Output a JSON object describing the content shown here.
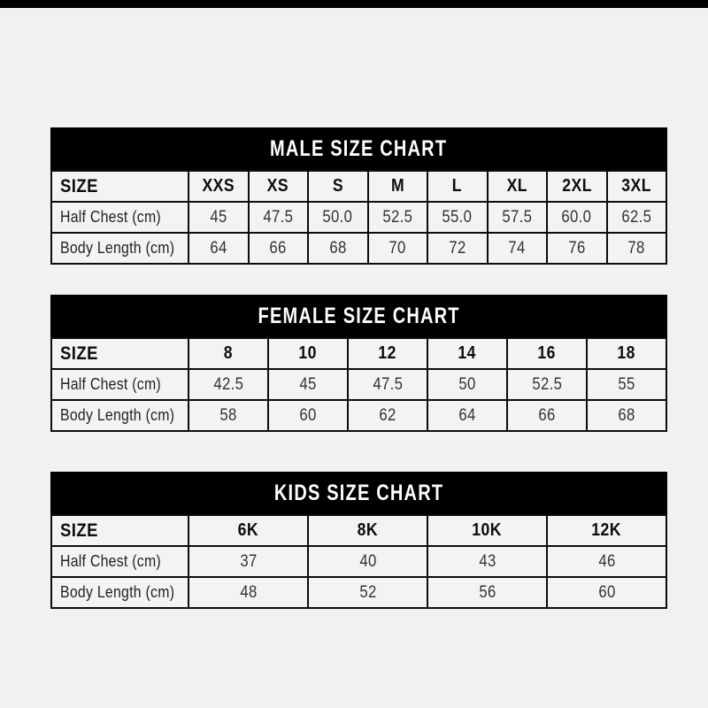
{
  "page": {
    "background_color": "#f1f1f1",
    "top_bar_color": "#000000",
    "table_border_color": "#0c0c0c",
    "title_bar_color": "#000000",
    "title_text_color": "#ffffff"
  },
  "chart_data": [
    {
      "type": "table",
      "title": "MALE SIZE CHART",
      "size_label": "SIZE",
      "sizes": [
        "XXS",
        "XS",
        "S",
        "M",
        "L",
        "XL",
        "2XL",
        "3XL"
      ],
      "rows": [
        {
          "label": "Half Chest (cm)",
          "values": [
            "45",
            "47.5",
            "50.0",
            "52.5",
            "55.0",
            "57.5",
            "60.0",
            "62.5"
          ]
        },
        {
          "label": "Body Length (cm)",
          "values": [
            "64",
            "66",
            "68",
            "70",
            "72",
            "74",
            "76",
            "78"
          ]
        }
      ]
    },
    {
      "type": "table",
      "title": "FEMALE SIZE CHART",
      "size_label": "SIZE",
      "sizes": [
        "8",
        "10",
        "12",
        "14",
        "16",
        "18"
      ],
      "rows": [
        {
          "label": "Half Chest (cm)",
          "values": [
            "42.5",
            "45",
            "47.5",
            "50",
            "52.5",
            "55"
          ]
        },
        {
          "label": "Body Length (cm)",
          "values": [
            "58",
            "60",
            "62",
            "64",
            "66",
            "68"
          ]
        }
      ]
    },
    {
      "type": "table",
      "title": "KIDS SIZE CHART",
      "size_label": "SIZE",
      "sizes": [
        "6K",
        "8K",
        "10K",
        "12K"
      ],
      "rows": [
        {
          "label": "Half Chest (cm)",
          "values": [
            "37",
            "40",
            "43",
            "46"
          ]
        },
        {
          "label": "Body Length (cm)",
          "values": [
            "48",
            "52",
            "56",
            "60"
          ]
        }
      ]
    }
  ]
}
